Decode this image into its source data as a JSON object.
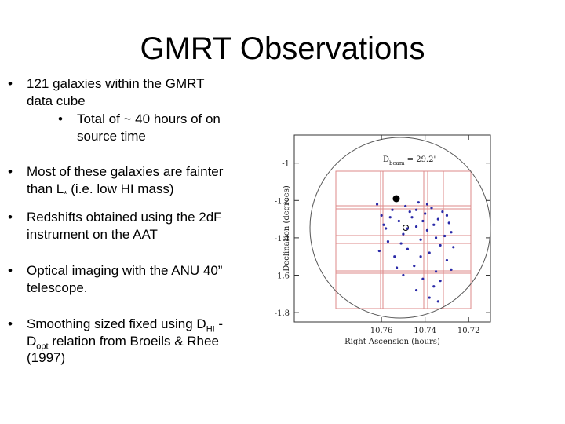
{
  "slide": {
    "title": "GMRT Observations",
    "bullets": [
      {
        "lines": [
          [
            "121 galaxies within the GMRT"
          ],
          [
            "data cube"
          ]
        ],
        "sub": {
          "lines": [
            [
              "Total of ~ 40 hours of on"
            ],
            [
              "source time"
            ]
          ]
        }
      },
      {
        "lines": [
          [
            "Most of these galaxies are fainter"
          ],
          [
            "than L",
            {
              "sub": "*"
            },
            " (i.e. low HI mass)"
          ]
        ]
      },
      {
        "lines": [
          [
            "Redshifts obtained using the 2dF"
          ],
          [
            "instrument on the AAT"
          ]
        ]
      },
      {
        "lines": [
          [
            "Optical imaging with the ANU 40”"
          ],
          [
            "telescope."
          ]
        ]
      },
      {
        "lines": [
          [
            "Smoothing sized fixed using D",
            {
              "sub": "HI"
            },
            " -"
          ],
          [
            "D",
            {
              "sub": "opt"
            },
            " relation from Broeils & Rhee"
          ],
          [
            "(1997)"
          ]
        ]
      }
    ]
  },
  "figure": {
    "type": "scatter",
    "xlabel": "Right Ascension (hours)",
    "ylabel": "Declination (degrees)",
    "annotation": [
      "D",
      {
        "sub": "beam"
      },
      " = 29.2'"
    ],
    "xlim": [
      10.8,
      10.71
    ],
    "ylim": [
      -1.85,
      -0.85
    ],
    "xticks": [
      10.76,
      10.74,
      10.72
    ],
    "yticks": [
      -1,
      -1.2,
      -1.4,
      -1.6,
      -1.8
    ],
    "color": "#2a2aa8",
    "x": [
      10.762,
      10.76,
      10.758,
      10.757,
      10.755,
      10.754,
      10.752,
      10.75,
      10.749,
      10.748,
      10.746,
      10.745,
      10.744,
      10.743,
      10.742,
      10.741,
      10.74,
      10.739,
      10.738,
      10.737,
      10.736,
      10.735,
      10.734,
      10.733,
      10.732,
      10.731,
      10.73,
      10.729,
      10.728,
      10.727,
      10.761,
      10.759,
      10.756,
      10.753,
      10.751,
      10.747,
      10.744,
      10.741,
      10.738,
      10.735,
      10.733,
      10.73,
      10.728,
      10.744,
      10.742,
      10.739,
      10.736,
      10.748,
      10.75,
      10.734
    ],
    "y": [
      -1.22,
      -1.28,
      -1.35,
      -1.42,
      -1.25,
      -1.5,
      -1.31,
      -1.38,
      -1.23,
      -1.46,
      -1.29,
      -1.55,
      -1.34,
      -1.21,
      -1.41,
      -1.62,
      -1.27,
      -1.36,
      -1.48,
      -1.24,
      -1.33,
      -1.58,
      -1.3,
      -1.44,
      -1.26,
      -1.39,
      -1.52,
      -1.32,
      -1.37,
      -1.45,
      -1.47,
      -1.33,
      -1.29,
      -1.56,
      -1.43,
      -1.26,
      -1.68,
      -1.31,
      -1.72,
      -1.4,
      -1.63,
      -1.28,
      -1.57,
      -1.25,
      -1.5,
      -1.22,
      -1.66,
      -1.35,
      -1.6,
      -1.74
    ]
  }
}
